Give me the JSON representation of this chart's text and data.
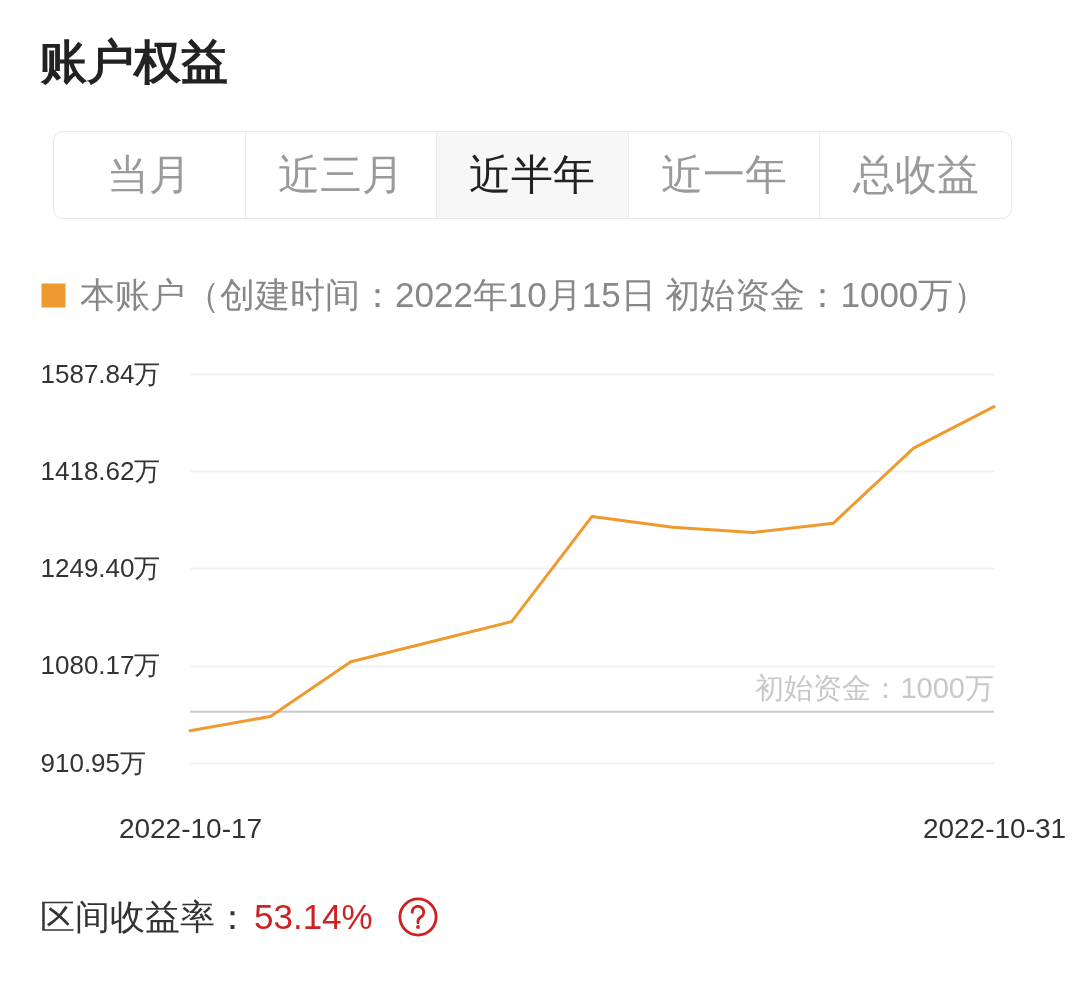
{
  "chart_data": {
    "type": "line",
    "title": "账户权益",
    "categories": [
      "2022-10-17",
      null,
      null,
      null,
      null,
      null,
      null,
      null,
      null,
      null,
      "2022-10-31"
    ],
    "series": [
      {
        "name": "本账户（创建时间：2022年10月15日 初始资金：1000万）",
        "color": "#ee9a2e",
        "values": [
          967,
          992,
          1087,
          1122,
          1157,
          1340,
          1321,
          1312,
          1328,
          1459,
          1531
        ]
      }
    ],
    "ylim": [
      910.95,
      1587.84
    ],
    "yticks": [
      {
        "value": 910.95,
        "label": "910.95万"
      },
      {
        "value": 1080.17,
        "label": "1080.17万"
      },
      {
        "value": 1249.4,
        "label": "1249.40万"
      },
      {
        "value": 1418.62,
        "label": "1418.62万"
      },
      {
        "value": 1587.84,
        "label": "1587.84万"
      }
    ],
    "grid": "y",
    "legend": "top left",
    "ref_lines": [
      {
        "axis": "y",
        "value": 1000,
        "label": "初始资金：1000万",
        "color": "#c8c8c8"
      }
    ],
    "annotations": [
      "当月",
      "近三月",
      "近半年",
      "近一年",
      "总收益",
      "区间收益率：",
      "53.14%"
    ]
  }
}
